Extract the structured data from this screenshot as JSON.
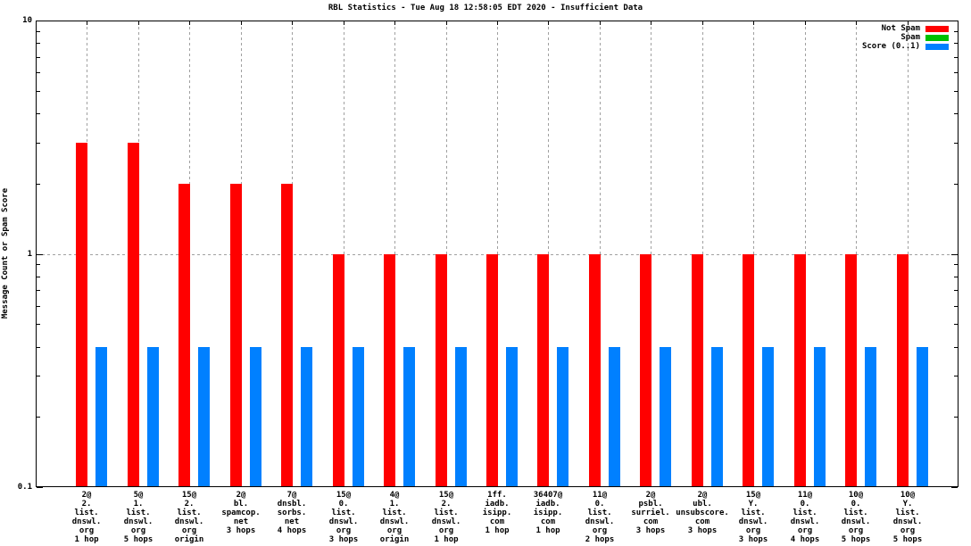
{
  "chart_data": {
    "type": "bar",
    "title": "RBL Statistics - Tue Aug 18 12:58:05 EDT 2020 - Insufficient Data",
    "xlabel": "",
    "ylabel": "Message Count or Spam Score",
    "y_scale": "log",
    "ylim": [
      0.1,
      10
    ],
    "yticks": [
      {
        "value": 10,
        "label": "10"
      },
      {
        "value": 1,
        "label": "1"
      },
      {
        "value": 0.1,
        "label": "0.1"
      }
    ],
    "grid": {
      "h_line_at": 1,
      "vertical_per_category": true,
      "style": "dashed",
      "color": "#a0a0a0"
    },
    "legend": {
      "position": "top-right",
      "entries": [
        {
          "label": "Not Spam",
          "color": "#ff0000"
        },
        {
          "label": "Spam",
          "color": "#00c000"
        },
        {
          "label": "Score (0..1)",
          "color": "#0080ff"
        }
      ]
    },
    "categories": [
      [
        "2@",
        "2.",
        "list.",
        "dnswl.",
        "org",
        "1 hop"
      ],
      [
        "5@",
        "1.",
        "list.",
        "dnswl.",
        "org",
        "5 hops"
      ],
      [
        "15@",
        "2.",
        "list.",
        "dnswl.",
        "org",
        "origin"
      ],
      [
        "2@",
        "bl.",
        "spamcop.",
        "net",
        "3 hops"
      ],
      [
        "7@",
        "dnsbl.",
        "sorbs.",
        "net",
        "4 hops"
      ],
      [
        "15@",
        "0.",
        "list.",
        "dnswl.",
        "org",
        "3 hops"
      ],
      [
        "4@",
        "1.",
        "list.",
        "dnswl.",
        "org",
        "origin"
      ],
      [
        "15@",
        "2.",
        "list.",
        "dnswl.",
        "org",
        "1 hop"
      ],
      [
        "1ff.",
        "iadb.",
        "isipp.",
        "com",
        "1 hop"
      ],
      [
        "36407@",
        "iadb.",
        "isipp.",
        "com",
        "1 hop"
      ],
      [
        "11@",
        "0.",
        "list.",
        "dnswl.",
        "org",
        "2 hops"
      ],
      [
        "2@",
        "psbl.",
        "surriel.",
        "com",
        "3 hops"
      ],
      [
        "2@",
        "ubl.",
        "unsubscore.",
        "com",
        "3 hops"
      ],
      [
        "15@",
        "Y.",
        "list.",
        "dnswl.",
        "org",
        "3 hops"
      ],
      [
        "11@",
        "0.",
        "list.",
        "dnswl.",
        "org",
        "4 hops"
      ],
      [
        "10@",
        "0.",
        "list.",
        "dnswl.",
        "org",
        "5 hops"
      ],
      [
        "10@",
        "Y.",
        "list.",
        "dnswl.",
        "org",
        "5 hops"
      ]
    ],
    "series": [
      {
        "name": "Not Spam",
        "color": "#ff0000",
        "values": [
          3,
          3,
          2,
          2,
          2,
          1,
          1,
          1,
          1,
          1,
          1,
          1,
          1,
          1,
          1,
          1,
          1
        ]
      },
      {
        "name": "Spam",
        "color": "#00c000",
        "values": [
          0,
          0,
          0,
          0,
          0,
          0,
          0,
          0,
          0,
          0,
          0,
          0,
          0,
          0,
          0,
          0,
          0
        ]
      },
      {
        "name": "Score (0..1)",
        "color": "#0080ff",
        "values": [
          0.4,
          0.4,
          0.4,
          0.4,
          0.4,
          0.4,
          0.4,
          0.4,
          0.4,
          0.4,
          0.4,
          0.4,
          0.4,
          0.4,
          0.4,
          0.4,
          0.4
        ]
      }
    ]
  }
}
